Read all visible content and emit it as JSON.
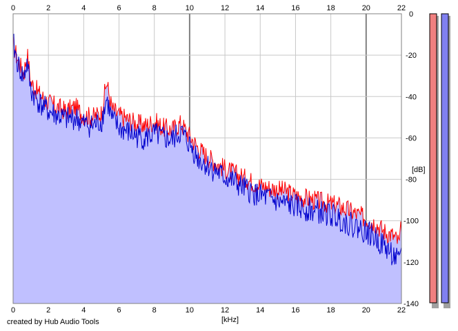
{
  "credit": "created by Hub Audio Tools",
  "chart_data": {
    "type": "area",
    "xlabel": "[kHz]",
    "ylabel": "[dB]",
    "xlim": [
      0,
      22
    ],
    "ylim": [
      -140,
      0
    ],
    "xticks": [
      0,
      2,
      4,
      6,
      8,
      10,
      12,
      14,
      16,
      18,
      20,
      22
    ],
    "yticks": [
      0,
      -20,
      -40,
      -60,
      -80,
      -100,
      -120,
      -140
    ],
    "ytick_labels": [
      "0",
      "-20",
      "-40",
      "-60",
      "-80",
      "-100",
      "-120",
      "-140"
    ],
    "grid": true,
    "fill_color": "#c0c0ff",
    "series": [
      {
        "color": "#ff0000",
        "x": [
          0,
          0.3,
          0.6,
          0.8,
          1,
          1.5,
          2,
          2.5,
          3,
          3.5,
          4,
          4.5,
          5,
          5.3,
          5.6,
          6,
          6.5,
          7,
          7.5,
          8,
          8.5,
          9,
          9.5,
          10,
          10.5,
          11,
          11.5,
          12,
          12.5,
          13,
          13.5,
          14,
          14.5,
          15,
          15.5,
          16,
          16.5,
          17,
          17.5,
          18,
          18.5,
          19,
          19.5,
          20,
          20.5,
          21,
          21.5,
          21.9,
          22
        ],
        "y": [
          -14,
          -22,
          -28,
          -18,
          -32,
          -38,
          -42,
          -44,
          -46,
          -44,
          -48,
          -49,
          -47,
          -32,
          -45,
          -48,
          -50,
          -52,
          -53,
          -51,
          -54,
          -55,
          -52,
          -58,
          -64,
          -68,
          -71,
          -74,
          -76,
          -78,
          -80,
          -82,
          -83,
          -84,
          -85,
          -87,
          -88,
          -89,
          -90,
          -91,
          -92,
          -94,
          -96,
          -98,
          -100,
          -104,
          -106,
          -110,
          -100
        ]
      },
      {
        "color": "#0000cc",
        "x": [
          0,
          0.3,
          0.6,
          0.8,
          1,
          1.5,
          2,
          2.5,
          3,
          3.5,
          4,
          4.5,
          5,
          5.3,
          5.6,
          6,
          6.5,
          7,
          7.5,
          8,
          8.5,
          9,
          9.5,
          10,
          10.5,
          11,
          11.5,
          12,
          12.5,
          13,
          13.5,
          14,
          14.5,
          15,
          15.5,
          16,
          16.5,
          17,
          17.5,
          18,
          18.5,
          19,
          19.5,
          20,
          20.5,
          21,
          21.5,
          21.9,
          22
        ],
        "y": [
          -13,
          -24,
          -30,
          -22,
          -36,
          -42,
          -46,
          -48,
          -50,
          -49,
          -52,
          -53,
          -51,
          -40,
          -50,
          -54,
          -56,
          -58,
          -59,
          -57,
          -59,
          -60,
          -56,
          -62,
          -69,
          -72,
          -75,
          -78,
          -80,
          -83,
          -85,
          -87,
          -88,
          -90,
          -91,
          -92,
          -93,
          -94,
          -95,
          -96,
          -98,
          -100,
          -102,
          -104,
          -107,
          -111,
          -115,
          -120,
          -110
        ]
      }
    ],
    "meters": [
      {
        "color": "#f08080"
      },
      {
        "color": "#8080f0"
      }
    ]
  }
}
